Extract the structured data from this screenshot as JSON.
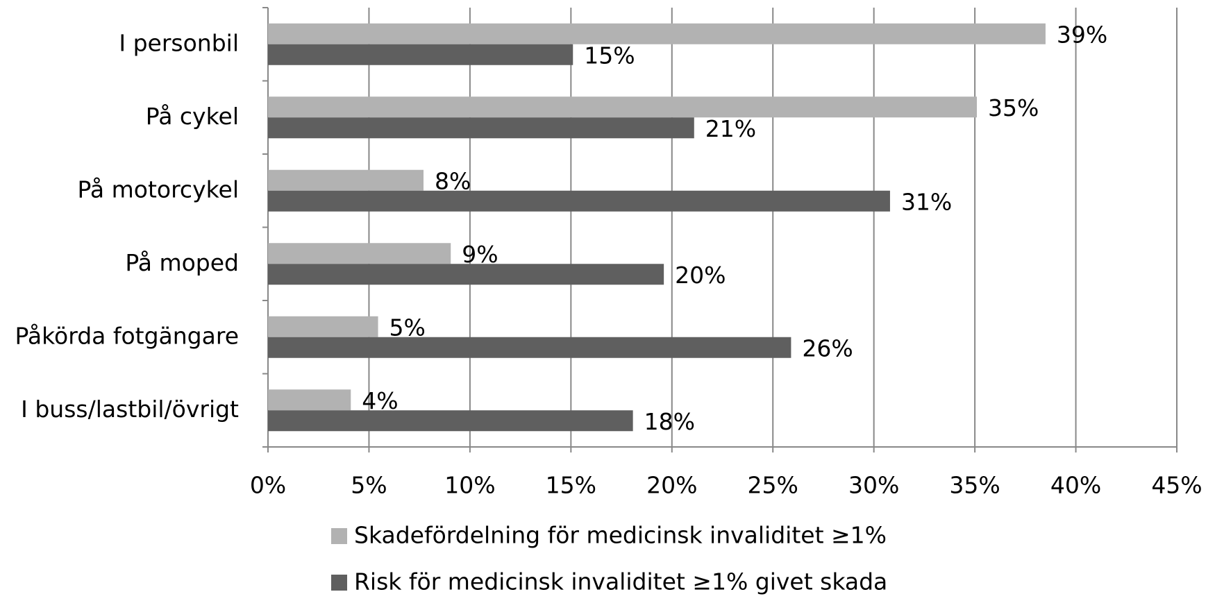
{
  "chart_data": {
    "type": "hbar",
    "categories": [
      "I personbil",
      "På cykel",
      "På motorcykel",
      "På moped",
      "Påkörda fotgängare",
      "I buss/lastbil/övrigt"
    ],
    "series": [
      {
        "name": "Skadefördelning för medicinsk invaliditet ≥1%",
        "color": "#b2b2b2",
        "values": [
          38.5,
          35.1,
          7.7,
          9.05,
          5.45,
          4.1
        ],
        "value_labels": [
          "39%",
          "35%",
          "8%",
          "9%",
          "5%",
          "4%"
        ]
      },
      {
        "name": "Risk för medicinsk invaliditet ≥1% givet skada",
        "color": "#5f5f5f",
        "values": [
          15.1,
          21.1,
          30.8,
          19.6,
          25.9,
          18.07
        ],
        "value_labels": [
          "15%",
          "21%",
          "31%",
          "20%",
          "26%",
          "18%"
        ]
      }
    ],
    "xlim": [
      0,
      45
    ],
    "xticks": [
      {
        "value": 0,
        "label": "0%"
      },
      {
        "value": 5,
        "label": "5%"
      },
      {
        "value": 10,
        "label": "10%"
      },
      {
        "value": 15,
        "label": "15%"
      },
      {
        "value": 20,
        "label": "20%"
      },
      {
        "value": 25,
        "label": "25%"
      },
      {
        "value": 30,
        "label": "30%"
      },
      {
        "value": 35,
        "label": "35%"
      },
      {
        "value": 40,
        "label": "40%"
      },
      {
        "value": 45,
        "label": "45%"
      }
    ],
    "grid": true,
    "legend": "bottom"
  }
}
